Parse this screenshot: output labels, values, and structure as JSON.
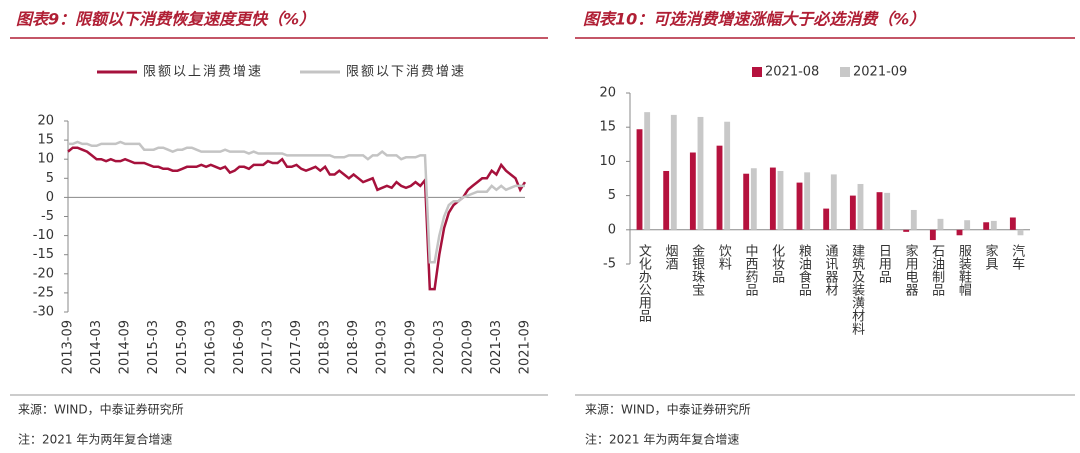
{
  "chart_data": [
    {
      "type": "line",
      "title": "图表9：限额以下消费恢复速度更快（%）",
      "categories": [
        "2013-09",
        null,
        null,
        null,
        null,
        null,
        "2014-03",
        null,
        null,
        null,
        null,
        null,
        "2014-09",
        null,
        null,
        null,
        null,
        null,
        "2015-03",
        null,
        null,
        null,
        null,
        null,
        "2015-09",
        null,
        null,
        null,
        null,
        null,
        "2016-03",
        null,
        null,
        null,
        null,
        null,
        "2016-09",
        null,
        null,
        null,
        null,
        null,
        "2017-03",
        null,
        null,
        null,
        null,
        null,
        "2017-09",
        null,
        null,
        null,
        null,
        null,
        "2018-03",
        null,
        null,
        null,
        null,
        null,
        "2018-09",
        null,
        null,
        null,
        null,
        null,
        "2019-03",
        null,
        null,
        null,
        null,
        null,
        "2019-09",
        null,
        null,
        null,
        null,
        null,
        "2020-03",
        null,
        null,
        null,
        null,
        null,
        "2020-09",
        null,
        null,
        null,
        null,
        null,
        "2021-03",
        null,
        null,
        null,
        null,
        null,
        "2021-09"
      ],
      "series": [
        {
          "name": "限额以上消费增速",
          "color": "#a6113c",
          "values": [
            12,
            13,
            13,
            12.5,
            12,
            11,
            10,
            10,
            9.5,
            10,
            9.5,
            9.5,
            10,
            9.5,
            9,
            9,
            9,
            8.5,
            8,
            8,
            7.5,
            7.5,
            7,
            7,
            7.5,
            8,
            8,
            8,
            8.5,
            8,
            8.5,
            8,
            7.5,
            8,
            6.5,
            7,
            8,
            8,
            7.5,
            8.5,
            8.5,
            8.5,
            9.5,
            9,
            9,
            10,
            8,
            8,
            8.5,
            7.5,
            7,
            7.5,
            8,
            7,
            8,
            6,
            6,
            7,
            6,
            5,
            6,
            5,
            4,
            4.5,
            5,
            2,
            2.5,
            3,
            2.5,
            4,
            3,
            2.5,
            3,
            4,
            3,
            4.5,
            -24,
            -24,
            -15,
            -8,
            -4,
            -2,
            -1,
            0,
            2,
            3,
            4,
            5,
            5,
            7,
            6,
            8.5,
            7,
            6,
            5,
            2,
            4
          ]
        },
        {
          "name": "限额以下消费增速",
          "color": "#c4c4c4",
          "values": [
            14,
            14,
            14.5,
            14,
            14,
            13.5,
            13.5,
            14,
            14,
            14,
            14,
            14.5,
            14,
            14,
            14,
            14,
            12.5,
            12.5,
            12.5,
            13,
            13,
            12.5,
            12,
            12.5,
            12.5,
            13,
            13,
            12.5,
            12,
            12,
            12,
            12,
            12,
            12.5,
            12,
            12,
            12,
            12,
            11.5,
            12,
            11.5,
            11.5,
            11.5,
            11.5,
            11.5,
            11.5,
            11,
            11,
            11,
            11,
            11,
            11,
            11,
            11,
            11,
            11,
            10.5,
            10.5,
            10.5,
            11,
            11,
            11,
            11,
            10,
            11,
            11,
            12,
            11,
            11,
            11,
            10,
            10.5,
            10.5,
            10.5,
            11,
            11,
            -17,
            -17,
            -10,
            -5,
            -2,
            -1,
            -1,
            0,
            0.5,
            1,
            1.5,
            1.5,
            1.5,
            3,
            2,
            3,
            2,
            2.5,
            3,
            3,
            3
          ]
        }
      ],
      "ylim": [
        -30,
        20
      ],
      "yticks": [
        -30,
        -25,
        -20,
        -15,
        -10,
        -5,
        0,
        5,
        10,
        15,
        20
      ]
    },
    {
      "type": "bar",
      "title": "图表10：可选消费增速涨幅大于必选消费（%）",
      "categories": [
        "文化办公用品",
        "烟酒",
        "金银珠宝",
        "饮料",
        "中西药品",
        "化妆品",
        "粮油食品",
        "通讯器材",
        "建筑及装潢材料",
        "日用品",
        "家用电器",
        "石油制品",
        "服装鞋帽",
        "家具",
        "汽车"
      ],
      "series": [
        {
          "name": "2021-08",
          "color": "#b5123e",
          "values": [
            14.7,
            8.6,
            11.3,
            12.3,
            8.2,
            9.1,
            6.9,
            3.1,
            5.0,
            5.5,
            -0.3,
            -1.5,
            -0.8,
            1.1,
            1.8
          ]
        },
        {
          "name": "2021-09",
          "color": "#c8c8c8",
          "values": [
            17.2,
            16.8,
            16.5,
            15.8,
            9.0,
            8.6,
            8.4,
            8.1,
            6.7,
            5.4,
            2.9,
            1.6,
            1.4,
            1.3,
            -0.8
          ]
        }
      ],
      "ylim": [
        -5,
        20
      ],
      "yticks": [
        -5,
        0,
        5,
        10,
        15,
        20
      ]
    }
  ],
  "footer": {
    "left": {
      "source": "来源：WIND，中泰证券研究所",
      "note": "注：2021 年为两年复合增速"
    },
    "right": {
      "source": "来源：WIND，中泰证券研究所",
      "note": "注：2021 年为两年复合增速"
    }
  }
}
